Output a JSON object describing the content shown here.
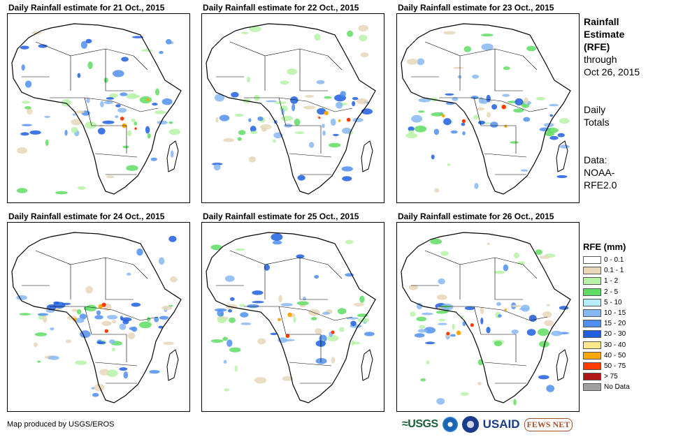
{
  "panels": [
    {
      "title": "Daily Rainfall estimate for 21 Oct., 2015"
    },
    {
      "title": "Daily Rainfall estimate for 22 Oct., 2015"
    },
    {
      "title": "Daily Rainfall estimate for 23 Oct., 2015"
    },
    {
      "title": "Daily Rainfall estimate for 24 Oct., 2015"
    },
    {
      "title": "Daily Rainfall estimate for 25 Oct., 2015"
    },
    {
      "title": "Daily Rainfall estimate for 26 Oct., 2015"
    }
  ],
  "side": {
    "title_line1": "Rainfall",
    "title_line2": "Estimate",
    "title_line3": "(RFE)",
    "through_line1": "through",
    "through_line2": "Oct 26, 2015",
    "daily_line1": "Daily",
    "daily_line2": "Totals",
    "data_line1": "Data:",
    "data_line2": "NOAA-",
    "data_line3": "RFE2.0"
  },
  "legend": {
    "title": "RFE (mm)",
    "items": [
      {
        "label": "0 - 0.1",
        "color": "#ffffff"
      },
      {
        "label": "0.1 - 1",
        "color": "#e8d7b9"
      },
      {
        "label": "1 - 2",
        "color": "#b7f2a7"
      },
      {
        "label": "2 - 5",
        "color": "#5fdc63"
      },
      {
        "label": "5 - 10",
        "color": "#b6ecf8"
      },
      {
        "label": "10 - 15",
        "color": "#87b8f2"
      },
      {
        "label": "15 - 20",
        "color": "#4f8ff0"
      },
      {
        "label": "20 - 30",
        "color": "#1f5fe0"
      },
      {
        "label": "30 - 40",
        "color": "#ffe88a"
      },
      {
        "label": "40 - 50",
        "color": "#ffa600"
      },
      {
        "label": "50 - 75",
        "color": "#ff3c00"
      },
      {
        "label": "> 75",
        "color": "#b01818"
      },
      {
        "label": "No Data",
        "color": "#a0a0a0"
      }
    ]
  },
  "footer": {
    "credit": "Map produced by USGS/EROS"
  },
  "logos": {
    "usgs": "≈USGS",
    "usaid": "USAID",
    "fews": "FEWS NET"
  }
}
